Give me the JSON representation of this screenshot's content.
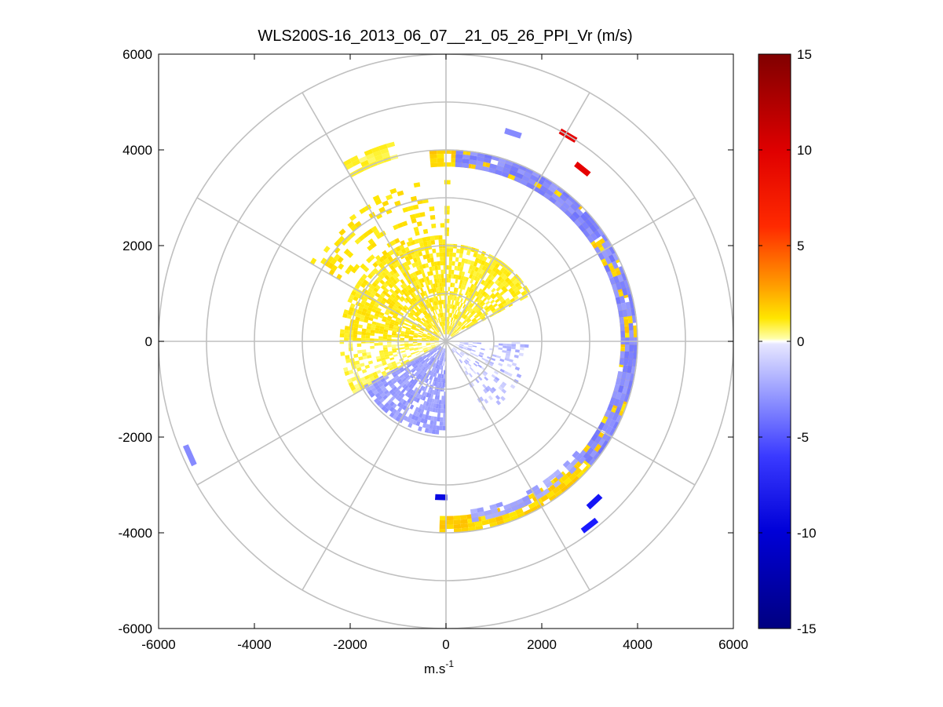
{
  "chart_data": {
    "type": "heatmap",
    "subtype": "polar-ppi-scan",
    "title": "WLS200S-16_2013_06_07__21_05_26_PPI_Vr (m/s)",
    "xlabel": "m.s",
    "xlabel_superscript": "-1",
    "ylabel": "",
    "xlim": [
      -6000,
      6000
    ],
    "ylim": [
      -6000,
      6000
    ],
    "x_ticks": [
      -6000,
      -4000,
      -2000,
      0,
      2000,
      4000,
      6000
    ],
    "y_ticks": [
      6000,
      4000,
      2000,
      0,
      -2000,
      -4000,
      -6000
    ],
    "polar_grid": {
      "ring_radii": [
        1000,
        2000,
        3000,
        4000,
        5000,
        6000
      ],
      "spoke_angles_deg": [
        0,
        30,
        60,
        90,
        120,
        150,
        180,
        210,
        240,
        270,
        300,
        330
      ],
      "grid_color": "#c0c0c0"
    },
    "colorbar": {
      "label_units": "m/s",
      "clim": [
        -15,
        15
      ],
      "ticks": [
        15,
        10,
        5,
        0,
        -5,
        -10,
        -15
      ],
      "colormap": "blue-white-yellow-red"
    },
    "colors": {
      "strong_positive": "#800000",
      "positive": "#ff0000",
      "orange": "#ff9900",
      "yellow": "#ffee00",
      "near_zero": "#ffffff",
      "light_blue": "#9fa3ff",
      "blue": "#1a1aff",
      "strong_negative": "#000080"
    },
    "regions": [
      {
        "name": "ring-west",
        "r_min": 3650,
        "r_max": 3950,
        "az_start": 355,
        "az_end": 180,
        "vr": 2.5,
        "gaps": 0.15
      },
      {
        "name": "ring-west-outer",
        "r_min": 3950,
        "r_max": 4250,
        "az_start": 330,
        "az_end": 345,
        "vr": 1.2,
        "gaps": 0.3
      },
      {
        "name": "ring-east",
        "r_min": 3650,
        "r_max": 3950,
        "az_start": 3,
        "az_end": 130,
        "vr": -2.5,
        "gaps": 0.15
      },
      {
        "name": "ring-east-tail",
        "r_min": 3550,
        "r_max": 3800,
        "az_start": 130,
        "az_end": 170,
        "vr": -1.5,
        "gaps": 0.35
      },
      {
        "name": "inner-west",
        "r_min": 150,
        "r_max": 2200,
        "az_start": 270,
        "az_end": 360,
        "vr": 1.8,
        "gaps": 0.25
      },
      {
        "name": "inner-west-south",
        "r_min": 150,
        "r_max": 2200,
        "az_start": 240,
        "az_end": 270,
        "vr": 1.0,
        "gaps": 0.4
      },
      {
        "name": "inner-north-east",
        "r_min": 150,
        "r_max": 2000,
        "az_start": 0,
        "az_end": 60,
        "vr": 1.5,
        "gaps": 0.3
      },
      {
        "name": "inner-south",
        "r_min": 150,
        "r_max": 1900,
        "az_start": 180,
        "az_end": 240,
        "vr": -1.8,
        "gaps": 0.2
      },
      {
        "name": "inner-east",
        "r_min": 200,
        "r_max": 1700,
        "az_start": 90,
        "az_end": 150,
        "vr": -0.8,
        "gaps": 0.7
      },
      {
        "name": "mid-scatter-west",
        "r_min": 2200,
        "r_max": 3300,
        "az_start": 300,
        "az_end": 360,
        "vr": 2.0,
        "gaps": 0.75
      }
    ],
    "isolated_segments": [
      {
        "x": 2550,
        "y": 4300,
        "vr": 11
      },
      {
        "x": 2850,
        "y": 3600,
        "vr": 11
      },
      {
        "x": 1400,
        "y": 4350,
        "vr": -2.5
      },
      {
        "x": -5350,
        "y": -2380,
        "vr": -2.5
      },
      {
        "x": 3100,
        "y": -3350,
        "vr": -7
      },
      {
        "x": 3000,
        "y": -3850,
        "vr": -6
      },
      {
        "x": -100,
        "y": -3260,
        "vr": -9
      }
    ]
  }
}
